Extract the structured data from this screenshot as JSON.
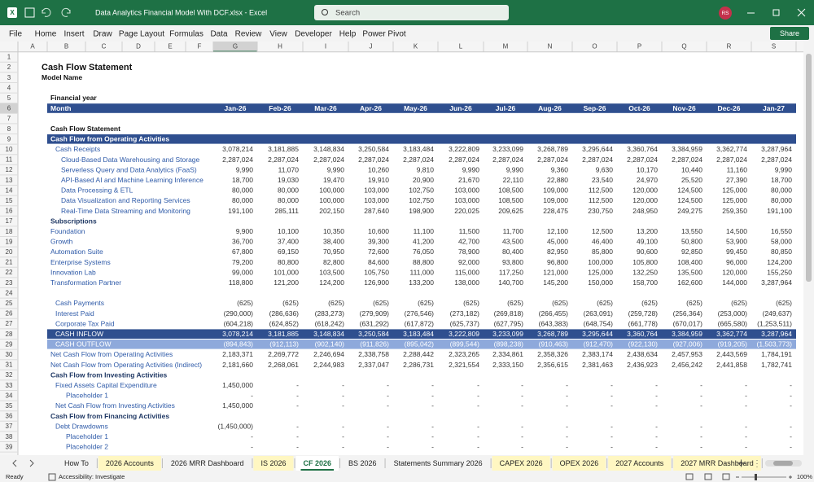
{
  "titlebar": {
    "title": "Data Analytics Financial Model With DCF.xlsx - Excel",
    "search": "Search",
    "user_initials": "RS"
  },
  "menu": {
    "tabs": [
      "File",
      "Home",
      "Insert",
      "Draw",
      "Page Layout",
      "Formulas",
      "Data",
      "Review",
      "View",
      "Developer",
      "Help",
      "Power Pivot"
    ],
    "share": "Share"
  },
  "sheet": {
    "columns": [
      "A",
      "B",
      "C",
      "D",
      "E",
      "F",
      "G",
      "H",
      "I",
      "J",
      "K",
      "L",
      "M",
      "N",
      "O",
      "P",
      "Q",
      "R",
      "S"
    ],
    "rows": [
      {
        "num": 1
      },
      {
        "num": 2,
        "B": "Cash Flow Statement"
      },
      {
        "num": 3,
        "B": "Model Name"
      },
      {
        "num": 4
      },
      {
        "num": 5,
        "C": "Financial year"
      },
      {
        "num": 6,
        "C": "Month",
        "values": [
          "Jan-26",
          "Feb-26",
          "Mar-26",
          "Apr-26",
          "May-26",
          "Jun-26",
          "Jul-26",
          "Aug-26",
          "Sep-26",
          "Oct-26",
          "Nov-26",
          "Dec-26",
          "Jan-27"
        ]
      },
      {
        "num": 7
      },
      {
        "num": 8,
        "C": "Cash Flow Statement"
      },
      {
        "num": 9,
        "C": "Cash Flow from Operating Activities"
      },
      {
        "num": 10,
        "D": "Cash Receipts",
        "values": [
          "3,078,214",
          "3,181,885",
          "3,148,834",
          "3,250,584",
          "3,183,484",
          "3,222,809",
          "3,233,099",
          "3,268,789",
          "3,295,644",
          "3,360,764",
          "3,384,959",
          "3,362,774",
          "3,287,964"
        ]
      },
      {
        "num": 11,
        "E": "Cloud-Based Data Warehousing and Storage",
        "values": [
          "2,287,024",
          "2,287,024",
          "2,287,024",
          "2,287,024",
          "2,287,024",
          "2,287,024",
          "2,287,024",
          "2,287,024",
          "2,287,024",
          "2,287,024",
          "2,287,024",
          "2,287,024",
          "2,287,024"
        ]
      },
      {
        "num": 12,
        "E": "Serverless Query and Data Analytics (FaaS)",
        "values": [
          "9,990",
          "11,070",
          "9,990",
          "10,260",
          "9,810",
          "9,990",
          "9,990",
          "9,360",
          "9,630",
          "10,170",
          "10,440",
          "11,160",
          "9,990"
        ]
      },
      {
        "num": 13,
        "E": "API-Based AI and Machine Learning Inference",
        "values": [
          "18,700",
          "19,030",
          "19,470",
          "19,910",
          "20,900",
          "21,670",
          "22,110",
          "22,880",
          "23,540",
          "24,970",
          "25,520",
          "27,390",
          "18,700"
        ]
      },
      {
        "num": 14,
        "E": "Data Processing & ETL",
        "values": [
          "80,000",
          "80,000",
          "100,000",
          "103,000",
          "102,750",
          "103,000",
          "108,500",
          "109,000",
          "112,500",
          "120,000",
          "124,500",
          "125,000",
          "80,000"
        ]
      },
      {
        "num": 15,
        "E": "Data Visualization and Reporting Services",
        "values": [
          "80,000",
          "80,000",
          "100,000",
          "103,000",
          "102,750",
          "103,000",
          "108,500",
          "109,000",
          "112,500",
          "120,000",
          "124,500",
          "125,000",
          "80,000"
        ]
      },
      {
        "num": 16,
        "E": "Real-Time Data Streaming and Monitoring",
        "values": [
          "191,100",
          "285,111",
          "202,150",
          "287,640",
          "198,900",
          "220,025",
          "209,625",
          "228,475",
          "230,750",
          "248,950",
          "249,275",
          "259,350",
          "191,100"
        ]
      },
      {
        "num": 17,
        "C": "Subscriptions"
      },
      {
        "num": 18,
        "C": "Foundation",
        "values": [
          "9,900",
          "10,100",
          "10,350",
          "10,600",
          "11,100",
          "11,500",
          "11,700",
          "12,100",
          "12,500",
          "13,200",
          "13,550",
          "14,500",
          "16,550"
        ]
      },
      {
        "num": 19,
        "C": "Growth",
        "values": [
          "36,700",
          "37,400",
          "38,400",
          "39,300",
          "41,200",
          "42,700",
          "43,500",
          "45,000",
          "46,400",
          "49,100",
          "50,800",
          "53,900",
          "58,000"
        ]
      },
      {
        "num": 20,
        "C": "Automation Suite",
        "values": [
          "67,800",
          "69,150",
          "70,950",
          "72,600",
          "76,050",
          "78,900",
          "80,400",
          "82,950",
          "85,800",
          "90,600",
          "92,850",
          "99,450",
          "80,850"
        ]
      },
      {
        "num": 21,
        "C": "Enterprise Systems",
        "values": [
          "79,200",
          "80,800",
          "82,800",
          "84,600",
          "88,800",
          "92,000",
          "93,800",
          "96,800",
          "100,000",
          "105,800",
          "108,400",
          "96,000",
          "124,200"
        ]
      },
      {
        "num": 22,
        "C": "Innovation Lab",
        "values": [
          "99,000",
          "101,000",
          "103,500",
          "105,750",
          "111,000",
          "115,000",
          "117,250",
          "121,000",
          "125,000",
          "132,250",
          "135,500",
          "120,000",
          "155,250"
        ]
      },
      {
        "num": 23,
        "C": "Transformation Partner",
        "values": [
          "118,800",
          "121,200",
          "124,200",
          "126,900",
          "133,200",
          "138,000",
          "140,700",
          "145,200",
          "150,000",
          "158,700",
          "162,600",
          "144,000",
          "3,287,964"
        ]
      },
      {
        "num": 24
      },
      {
        "num": 25,
        "D": "Cash Payments",
        "values": [
          "(625)",
          "(625)",
          "(625)",
          "(625)",
          "(625)",
          "(625)",
          "(625)",
          "(625)",
          "(625)",
          "(625)",
          "(625)",
          "(625)",
          "(625)"
        ]
      },
      {
        "num": 26,
        "D": "Interest Paid",
        "values": [
          "(290,000)",
          "(286,636)",
          "(283,273)",
          "(279,909)",
          "(276,546)",
          "(273,182)",
          "(269,818)",
          "(266,455)",
          "(263,091)",
          "(259,728)",
          "(256,364)",
          "(253,000)",
          "(249,637)"
        ]
      },
      {
        "num": 27,
        "D": "Corporate Tax Paid",
        "values": [
          "(604,218)",
          "(624,852)",
          "(618,242)",
          "(631,292)",
          "(617,872)",
          "(625,737)",
          "(627,795)",
          "(643,383)",
          "(648,754)",
          "(661,778)",
          "(670,017)",
          "(665,580)",
          "(1,253,511)"
        ]
      },
      {
        "num": 28,
        "D": "CASH INFLOW",
        "values": [
          "3,078,214",
          "3,181,885",
          "3,148,834",
          "3,250,584",
          "3,183,484",
          "3,222,809",
          "3,233,099",
          "3,268,789",
          "3,295,644",
          "3,360,764",
          "3,384,959",
          "3,362,774",
          "3,287,964"
        ]
      },
      {
        "num": 29,
        "D": "CASH OUTFLOW",
        "values": [
          "(894,843)",
          "(912,113)",
          "(902,140)",
          "(911,826)",
          "(895,042)",
          "(899,544)",
          "(898,238)",
          "(910,463)",
          "(912,470)",
          "(922,130)",
          "(927,006)",
          "(919,205)",
          "(1,503,773)"
        ]
      },
      {
        "num": 30,
        "C": "Net Cash Flow from Operating Activities",
        "values": [
          "2,183,371",
          "2,269,772",
          "2,246,694",
          "2,338,758",
          "2,288,442",
          "2,323,265",
          "2,334,861",
          "2,358,326",
          "2,383,174",
          "2,438,634",
          "2,457,953",
          "2,443,569",
          "1,784,191"
        ]
      },
      {
        "num": 31,
        "C": "Net Cash Flow from Operating Activities (Indirect)",
        "values": [
          "2,181,660",
          "2,268,061",
          "2,244,983",
          "2,337,047",
          "2,286,731",
          "2,321,554",
          "2,333,150",
          "2,356,615",
          "2,381,463",
          "2,436,923",
          "2,456,242",
          "2,441,858",
          "1,782,741"
        ]
      },
      {
        "num": 32,
        "C": "Cash Flow from Investing Activities"
      },
      {
        "num": 33,
        "D": "Fixed Assets Capital Expenditure",
        "values": [
          "1,450,000",
          "-",
          "-",
          "-",
          "-",
          "-",
          "-",
          "-",
          "-",
          "-",
          "-",
          "-",
          "-"
        ]
      },
      {
        "num": 34,
        "F": "Placeholder 1",
        "values": [
          "-",
          "-",
          "-",
          "-",
          "-",
          "-",
          "-",
          "-",
          "-",
          "-",
          "-",
          "-",
          "-"
        ]
      },
      {
        "num": 35,
        "D": "Net Cash Flow from Investing Activities",
        "values": [
          "1,450,000",
          "-",
          "-",
          "-",
          "-",
          "-",
          "-",
          "-",
          "-",
          "-",
          "-",
          "-",
          "-"
        ]
      },
      {
        "num": 36,
        "C": "Cash Flow from Financing Activities"
      },
      {
        "num": 37,
        "D": "Debt Drawdowns",
        "values": [
          "(1,450,000)",
          "-",
          "-",
          "-",
          "-",
          "-",
          "-",
          "-",
          "-",
          "-",
          "-",
          "-",
          "-"
        ]
      },
      {
        "num": 38,
        "F": "Placeholder 1",
        "values": [
          "-",
          "-",
          "-",
          "-",
          "-",
          "-",
          "-",
          "-",
          "-",
          "-",
          "-",
          "-",
          "-"
        ]
      },
      {
        "num": 39,
        "F": "Placeholder 2",
        "values": [
          "-",
          "-",
          "-",
          "-",
          "-",
          "-",
          "-",
          "-",
          "-",
          "-",
          "-",
          "-",
          "-"
        ]
      }
    ]
  },
  "sheet_tabs": [
    "How To",
    "2026 Accounts",
    "2026 MRR Dashboard",
    "IS 2026",
    "CF 2026",
    "BS 2026",
    "Statements Summary 2026",
    "CAPEX 2026",
    "OPEX 2026",
    "2027 Accounts",
    "2027 MRR Dashboard"
  ],
  "status": {
    "ready": "Ready",
    "accessibility": "Accessibility: Investigate",
    "zoom": "100%"
  }
}
